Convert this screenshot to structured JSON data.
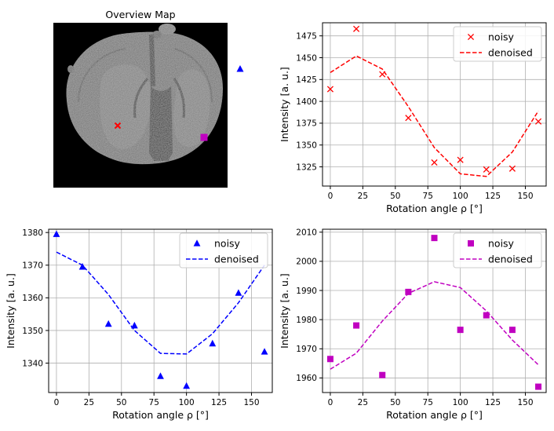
{
  "overview": {
    "title": "Overview Map",
    "markers": [
      {
        "name": "red-marker",
        "color": "#ff0000",
        "shape": "x"
      },
      {
        "name": "blue-marker",
        "color": "#0000ff",
        "shape": "triangle"
      },
      {
        "name": "magenta-marker",
        "color": "#c000c0",
        "shape": "square"
      }
    ]
  },
  "chart_data": [
    {
      "id": "red",
      "type": "scatter+line",
      "color": "#ff0000",
      "marker": "x",
      "xlabel": "Rotation angle ρ [°]",
      "ylabel": "Intensity [a. u.]",
      "xlim": [
        -6,
        166
      ],
      "ylim": [
        1303,
        1490
      ],
      "xticks": [
        0,
        25,
        50,
        75,
        100,
        125,
        150
      ],
      "yticks": [
        1325,
        1350,
        1375,
        1400,
        1425,
        1450,
        1475
      ],
      "legend_position": "top-right",
      "series": [
        {
          "name": "noisy",
          "style": "markers",
          "x": [
            0,
            20,
            40,
            60,
            80,
            100,
            120,
            140,
            160
          ],
          "y": [
            1414,
            1483,
            1431,
            1381,
            1330,
            1333,
            1322,
            1323,
            1377
          ]
        },
        {
          "name": "denoised",
          "style": "dashed",
          "x": [
            0,
            20,
            40,
            60,
            80,
            100,
            120,
            140,
            160
          ],
          "y": [
            1433,
            1452,
            1437,
            1394,
            1347,
            1317,
            1314,
            1342,
            1389
          ]
        }
      ]
    },
    {
      "id": "blue",
      "type": "scatter+line",
      "color": "#0000ff",
      "marker": "triangle",
      "xlabel": "Rotation angle ρ [°]",
      "ylabel": "Intensity [a. u.]",
      "xlim": [
        -6,
        166
      ],
      "ylim": [
        1331,
        1381
      ],
      "xticks": [
        0,
        25,
        50,
        75,
        100,
        125,
        150
      ],
      "yticks": [
        1340,
        1350,
        1360,
        1370,
        1380
      ],
      "legend_position": "top-right",
      "series": [
        {
          "name": "noisy",
          "style": "markers",
          "x": [
            0,
            20,
            40,
            60,
            80,
            100,
            120,
            140,
            160
          ],
          "y": [
            1379.5,
            1369.5,
            1352,
            1351.5,
            1336,
            1333,
            1346,
            1361.5,
            1343.5
          ]
        },
        {
          "name": "denoised",
          "style": "dashed",
          "x": [
            0,
            20,
            40,
            60,
            80,
            100,
            120,
            140,
            160
          ],
          "y": [
            1374,
            1370,
            1361,
            1350,
            1343,
            1342.8,
            1349,
            1358.5,
            1370
          ]
        }
      ]
    },
    {
      "id": "magenta",
      "type": "scatter+line",
      "color": "#c000c0",
      "marker": "square",
      "xlabel": "Rotation angle ρ [°]",
      "ylabel": "Intensity [a. u.]",
      "xlim": [
        -6,
        166
      ],
      "ylim": [
        1955,
        2011
      ],
      "xticks": [
        0,
        25,
        50,
        75,
        100,
        125,
        150
      ],
      "yticks": [
        1960,
        1970,
        1980,
        1990,
        2000,
        2010
      ],
      "legend_position": "top-right",
      "series": [
        {
          "name": "noisy",
          "style": "markers",
          "x": [
            0,
            20,
            40,
            60,
            80,
            100,
            120,
            140,
            160
          ],
          "y": [
            1966.5,
            1978,
            1961,
            1989.5,
            2008,
            1976.5,
            1981.5,
            1976.5,
            1957
          ]
        },
        {
          "name": "denoised",
          "style": "dashed",
          "x": [
            0,
            20,
            40,
            60,
            80,
            100,
            120,
            140,
            160
          ],
          "y": [
            1963,
            1968.5,
            1979.5,
            1989,
            1993,
            1991,
            1983,
            1973,
            1964.5
          ]
        }
      ]
    }
  ]
}
